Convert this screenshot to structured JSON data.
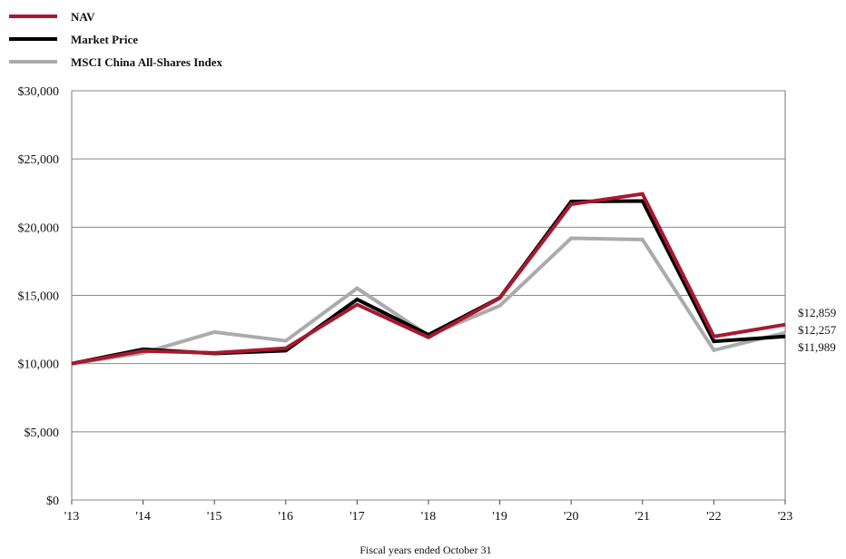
{
  "chart_data": {
    "type": "line",
    "x": [
      "'13",
      "'14",
      "'15",
      "'16",
      "'17",
      "'18",
      "'19",
      "'20",
      "'21",
      "'22",
      "'23"
    ],
    "xlabel": "Fiscal years ended October 31",
    "ylabel": "",
    "ylim": [
      0,
      30000
    ],
    "yticks": [
      0,
      5000,
      10000,
      15000,
      20000,
      25000,
      30000
    ],
    "ytick_labels": [
      "$0",
      "$5,000",
      "$10,000",
      "$15,000",
      "$20,000",
      "$25,000",
      "$30,000"
    ],
    "grid": true,
    "legend_position": "top-left",
    "series": [
      {
        "name": "NAV",
        "color": "#a8192e",
        "values": [
          10000,
          10930,
          10780,
          11120,
          14330,
          11930,
          14800,
          21680,
          22440,
          11990,
          12859
        ],
        "end_label": "$12,859"
      },
      {
        "name": "Market Price",
        "color": "#000000",
        "values": [
          10000,
          11050,
          10740,
          10950,
          14710,
          12110,
          14830,
          21880,
          21920,
          11630,
          11989
        ],
        "end_label": "$11,989"
      },
      {
        "name": "MSCI China All-Shares Index",
        "color": "#ababab",
        "values": [
          10000,
          10780,
          12310,
          11670,
          15520,
          12060,
          14240,
          19190,
          19090,
          10980,
          12257
        ],
        "end_label": "$12,257"
      }
    ]
  }
}
